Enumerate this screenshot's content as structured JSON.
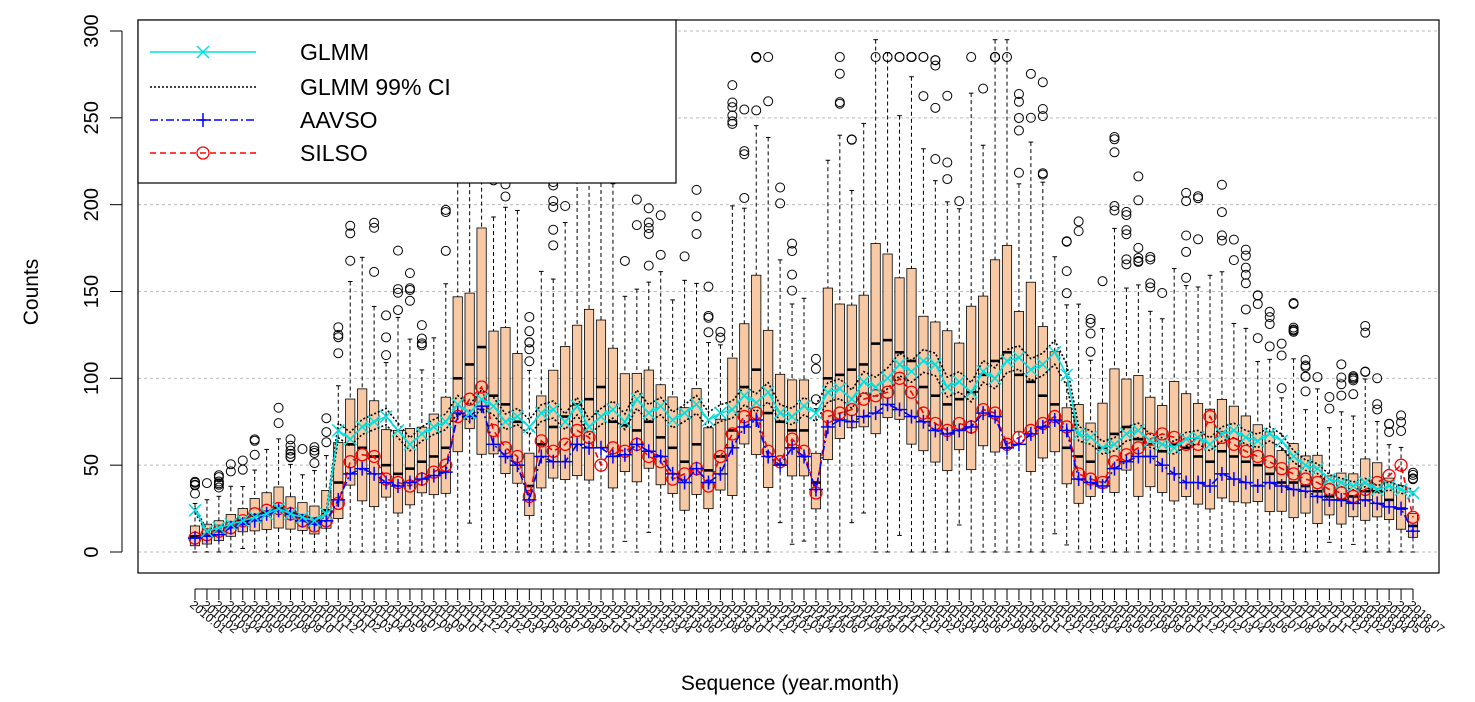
{
  "chart_data": {
    "type": "boxplot",
    "xlabel": "Sequence (year.month)",
    "ylabel": "Counts",
    "ylim": [
      0,
      300
    ],
    "yticks": [
      0,
      50,
      100,
      150,
      200,
      250,
      300
    ],
    "grid": "horizontal dotted",
    "legend_position": "top-left",
    "start_year": 2010,
    "start_month": 1,
    "n_months": 103,
    "box_fill": "#f7c9a4",
    "colors": {
      "glmm": "#00e0e0",
      "ci": "#000000",
      "aavso": "#0000ff",
      "silso": "#ff0000"
    },
    "legend": [
      {
        "key": "glmm",
        "label": "GLMM"
      },
      {
        "key": "ci",
        "label": "GLMM 99% CI"
      },
      {
        "key": "aavso",
        "label": "AAVSO"
      },
      {
        "key": "silso",
        "label": "SILSO"
      }
    ],
    "medians": [
      9,
      10,
      12,
      15,
      18,
      21,
      23,
      25,
      22,
      20,
      18,
      24,
      40,
      62,
      60,
      55,
      50,
      45,
      48,
      52,
      55,
      60,
      100,
      108,
      118,
      90,
      85,
      75,
      38,
      62,
      72,
      78,
      85,
      88,
      95,
      75,
      73,
      70,
      75,
      66,
      60,
      52,
      62,
      47,
      55,
      70,
      95,
      105,
      80,
      75,
      70,
      70,
      40,
      100,
      102,
      105,
      108,
      120,
      122,
      115,
      110,
      95,
      90,
      85,
      88,
      92,
      102,
      110,
      115,
      102,
      98,
      90,
      85,
      60,
      55,
      52,
      60,
      68,
      72,
      65,
      62,
      58,
      62,
      60,
      55,
      52,
      58,
      55,
      52,
      50,
      45,
      40,
      40,
      38,
      35,
      32,
      30,
      32,
      35,
      35,
      30,
      25,
      15
    ],
    "glmm": [
      24,
      12,
      14,
      16,
      18,
      20,
      22,
      25,
      22,
      20,
      18,
      22,
      70,
      65,
      72,
      75,
      78,
      70,
      62,
      68,
      72,
      75,
      85,
      80,
      88,
      84,
      75,
      78,
      72,
      80,
      82,
      75,
      84,
      72,
      78,
      82,
      75,
      88,
      80,
      84,
      76,
      80,
      85,
      76,
      80,
      82,
      90,
      86,
      92,
      80,
      78,
      84,
      80,
      92,
      94,
      88,
      98,
      95,
      100,
      108,
      104,
      110,
      108,
      95,
      98,
      92,
      104,
      100,
      110,
      112,
      105,
      108,
      115,
      102,
      68,
      66,
      60,
      62,
      68,
      70,
      64,
      62,
      60,
      65,
      66,
      62,
      68,
      70,
      66,
      64,
      68,
      64,
      55,
      50,
      48,
      42,
      40,
      38,
      40,
      36,
      38,
      36,
      34
    ],
    "aavso": [
      8,
      9,
      10,
      14,
      16,
      18,
      22,
      24,
      22,
      18,
      16,
      18,
      30,
      45,
      48,
      45,
      40,
      38,
      40,
      42,
      44,
      46,
      80,
      78,
      84,
      62,
      55,
      50,
      30,
      55,
      52,
      52,
      62,
      60,
      60,
      55,
      56,
      62,
      58,
      55,
      45,
      40,
      48,
      40,
      45,
      60,
      72,
      76,
      55,
      50,
      60,
      55,
      36,
      72,
      76,
      75,
      78,
      80,
      85,
      82,
      78,
      75,
      70,
      68,
      70,
      72,
      80,
      78,
      60,
      62,
      68,
      72,
      76,
      70,
      42,
      40,
      38,
      48,
      52,
      55,
      55,
      50,
      45,
      40,
      40,
      38,
      45,
      42,
      40,
      38,
      40,
      38,
      36,
      35,
      32,
      30,
      30,
      28,
      30,
      28,
      26,
      25,
      12
    ],
    "silso": [
      8,
      10,
      12,
      14,
      18,
      22,
      24,
      25,
      22,
      18,
      15,
      18,
      28,
      52,
      56,
      55,
      42,
      40,
      38,
      42,
      46,
      50,
      78,
      88,
      95,
      70,
      60,
      55,
      32,
      64,
      58,
      62,
      70,
      66,
      50,
      60,
      58,
      62,
      55,
      52,
      42,
      45,
      48,
      38,
      55,
      68,
      78,
      80,
      58,
      52,
      65,
      58,
      34,
      78,
      80,
      82,
      88,
      90,
      92,
      100,
      92,
      80,
      74,
      70,
      74,
      72,
      82,
      80,
      62,
      66,
      70,
      74,
      78,
      72,
      45,
      42,
      40,
      52,
      56,
      60,
      65,
      68,
      66,
      62,
      62,
      78,
      66,
      62,
      58,
      55,
      52,
      48,
      45,
      42,
      40,
      36,
      34,
      32,
      36,
      40,
      44,
      50,
      20
    ]
  }
}
